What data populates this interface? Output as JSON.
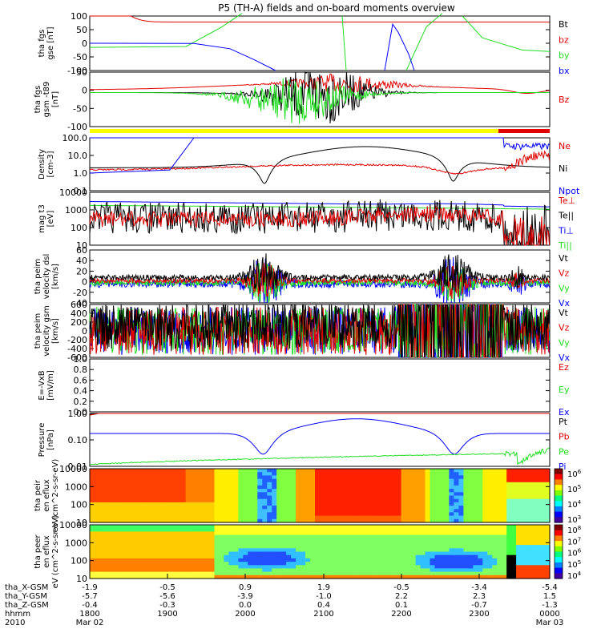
{
  "title": "P5 (TH-A) fields and on-board moments overview",
  "x_ticks": [
    "1800",
    "1900",
    "2000",
    "2100",
    "2200",
    "2300",
    "0000"
  ],
  "x_date_start": "Mar 02",
  "x_date_end": "Mar 03",
  "ephem_labels": [
    "tha_X-GSM",
    "tha_Y-GSM",
    "tha_Z-GSM",
    "hhmm",
    "2010"
  ],
  "ephem_rows": [
    [
      "-1.9",
      "-0.5",
      "0.9",
      "1.9",
      "-0.5",
      "-3.4",
      "-5.4"
    ],
    [
      "-5.7",
      "-5.6",
      "-3.9",
      "-1.0",
      "2.2",
      "2.3",
      "1.5"
    ],
    [
      "-0.4",
      "-0.3",
      "0.0",
      "0.4",
      "0.1",
      "-0.7",
      "-1.3"
    ]
  ],
  "colors": {
    "black": "#000000",
    "red": "#e00000",
    "green": "#22dd22",
    "blue": "#0000ff",
    "yellow": "#ffff00"
  },
  "chart_data": [
    {
      "type": "line",
      "panel": "fgs_gse",
      "ylabel": "tha fgs gse [nT]",
      "ylim": [
        -100,
        100
      ],
      "yticks": [
        "100",
        "50",
        "0",
        "-50",
        "-100"
      ],
      "legend": [
        {
          "name": "Bt",
          "color": "#000000"
        },
        {
          "name": "bz",
          "color": "#e00000"
        },
        {
          "name": "by",
          "color": "#22dd22"
        },
        {
          "name": "bx",
          "color": "#0000ff"
        }
      ]
    },
    {
      "type": "line",
      "panel": "fgs_gsm_t89",
      "ylabel": "tha fgs gsm -t89 [nT]",
      "ylim": [
        -125,
        75
      ],
      "yticks": [
        "50",
        "0",
        "-50",
        "-100"
      ],
      "legend": [
        {
          "name": "Bz",
          "color": "#e00000"
        }
      ]
    },
    {
      "type": "line",
      "panel": "density",
      "ylabel": "Density [cm-3]",
      "scale": "log",
      "yticks": [
        "100.0",
        "10.0",
        "1.0",
        "0.1"
      ],
      "legend": [
        {
          "name": "Ne",
          "color": "#e00000"
        },
        {
          "name": "Ni",
          "color": "#000000"
        },
        {
          "name": "Npot",
          "color": "#0000ff"
        }
      ]
    },
    {
      "type": "line",
      "panel": "temperature",
      "ylabel": "mag t3 [eV]",
      "scale": "log",
      "yticks": [
        "10000",
        "1000",
        "100",
        "10"
      ],
      "legend": [
        {
          "name": "Te⊥",
          "color": "#e00000"
        },
        {
          "name": "Te||",
          "color": "#000000"
        },
        {
          "name": "Ti⊥",
          "color": "#0000ff"
        },
        {
          "name": "Ti||",
          "color": "#22dd22"
        }
      ]
    },
    {
      "type": "line",
      "panel": "peim_velocity_dsl",
      "ylabel": "tha peim velocity dsl [km/s]",
      "ylim": [
        -40,
        60
      ],
      "yticks": [
        "60",
        "40",
        "20",
        "0",
        "-20",
        "-40"
      ],
      "legend": [
        {
          "name": "Vt",
          "color": "#000000"
        },
        {
          "name": "Vz",
          "color": "#e00000"
        },
        {
          "name": "Vy",
          "color": "#22dd22"
        },
        {
          "name": "Vx",
          "color": "#0000ff"
        }
      ]
    },
    {
      "type": "line",
      "panel": "peim_velocity_gsm",
      "ylabel": "tha peim velocity gsm [km/s]",
      "ylim": [
        -600,
        600
      ],
      "yticks": [
        "600",
        "400",
        "200",
        "0",
        "-200",
        "-400",
        "-600"
      ],
      "legend": [
        {
          "name": "Vt",
          "color": "#000000"
        },
        {
          "name": "Vz",
          "color": "#e00000"
        },
        {
          "name": "Vy",
          "color": "#22dd22"
        },
        {
          "name": "Vx",
          "color": "#0000ff"
        }
      ]
    },
    {
      "type": "line",
      "panel": "efield",
      "ylabel": "E=-VxB [mV/m]",
      "ylim": [
        0,
        1
      ],
      "yticks": [
        "1.0",
        "0.8",
        "0.6",
        "0.4",
        "0.2",
        "0.0"
      ],
      "legend": [
        {
          "name": "Ez",
          "color": "#e00000"
        },
        {
          "name": "Ey",
          "color": "#22dd22"
        },
        {
          "name": "Ex",
          "color": "#0000ff"
        }
      ]
    },
    {
      "type": "line",
      "panel": "pressure",
      "ylabel": "Pressure [nPa]",
      "scale": "log",
      "yticks": [
        "1.00",
        "0.10",
        "0.01"
      ],
      "legend": [
        {
          "name": "Pt",
          "color": "#000000"
        },
        {
          "name": "Pb",
          "color": "#e00000"
        },
        {
          "name": "Pe",
          "color": "#22dd22"
        },
        {
          "name": "Pi",
          "color": "#0000ff"
        }
      ]
    },
    {
      "type": "heatmap",
      "panel": "peir_eflux",
      "ylabel": "tha peir en eflux eV (cm^2-s-sr-eV)",
      "yticks": [
        "10000",
        "1000",
        "100",
        "10"
      ],
      "colorbar_ticks": [
        "10^6",
        "10^5",
        "10^4",
        "10^3"
      ]
    },
    {
      "type": "heatmap",
      "panel": "peer_eflux",
      "ylabel": "tha peer en eflux eV (cm^2-s-sr-eV)",
      "yticks": [
        "10000",
        "1000",
        "100",
        "10"
      ],
      "colorbar_ticks": [
        "10^8",
        "10^7",
        "10^6",
        "10^5",
        "10^4"
      ]
    }
  ]
}
